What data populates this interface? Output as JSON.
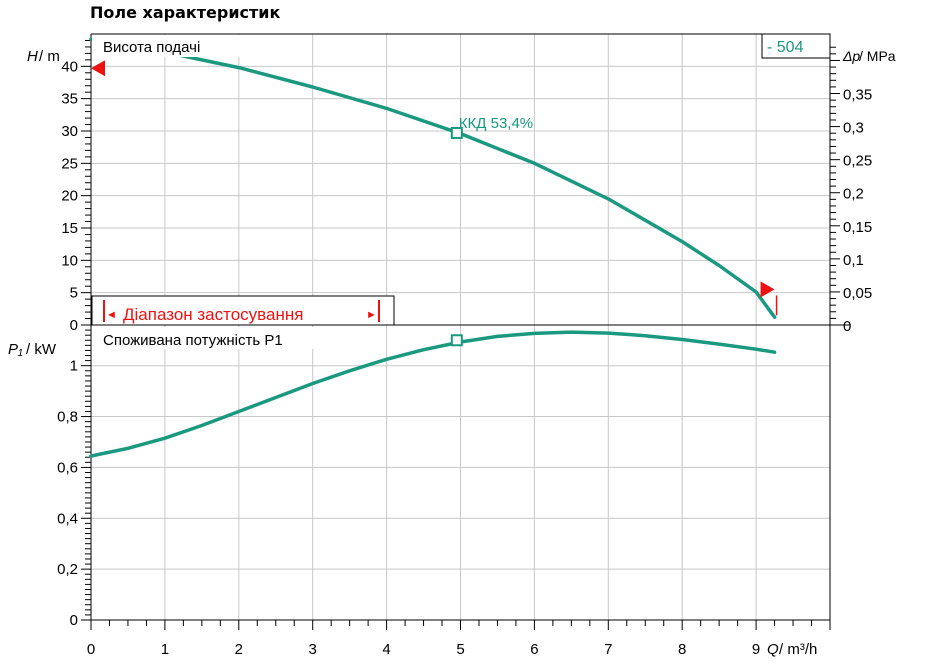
{
  "page_title": "Поле характеристик",
  "colors": {
    "curve": "#1a9980",
    "accent_red": "#ee1111",
    "grid": "#c8c8c8",
    "axis": "#000000"
  },
  "chart_data": [
    {
      "type": "line",
      "panel": "head",
      "title": "Висота подачі",
      "ylabel_symbol": "H",
      "ylabel_unit": " / m",
      "y2label_symbol": "Δp",
      "y2label_unit": " / MPa",
      "xlim": [
        0,
        10
      ],
      "ylim": [
        0,
        45
      ],
      "y2lim": [
        0,
        0.44
      ],
      "yticks": [
        0,
        5,
        10,
        15,
        20,
        25,
        30,
        35,
        40
      ],
      "ytick_labels": [
        "0",
        "5",
        "10",
        "15",
        "20",
        "25",
        "30",
        "35",
        "40"
      ],
      "y2ticks": [
        0,
        0.05,
        0.1,
        0.15,
        0.2,
        0.25,
        0.3,
        0.35
      ],
      "y2tick_labels": [
        "0",
        "0,05",
        "0,1",
        "0,15",
        "0,2",
        "0,25",
        "0,3",
        "0,35"
      ],
      "grid": true,
      "series": [
        {
          "x": [
            0,
            1,
            2,
            3,
            4,
            5,
            6,
            7,
            8,
            8.5,
            9,
            9.25
          ],
          "y": [
            44.2,
            42.2,
            39.8,
            36.8,
            33.5,
            29.6,
            25.0,
            19.5,
            12.9,
            9.2,
            5.1,
            1.2
          ]
        }
      ],
      "markers": [
        {
          "x": 4.95,
          "y": 29.7,
          "label": "ККД  53,4%"
        }
      ],
      "speed_badge": "- 504",
      "max_head_marker": {
        "y": 39.7
      },
      "end_marker": {
        "x": 9.25,
        "y": 5.5
      },
      "range_label": "Діапазон застосування",
      "range_arrow_left": "◄",
      "range_arrow_right": "►"
    },
    {
      "type": "line",
      "panel": "power",
      "title": "Споживана потужність P1",
      "ylabel_symbol": "P₁",
      "ylabel_unit": " / kW",
      "xlabel_symbol": "Q",
      "xlabel_unit": " / m³/h",
      "xlim": [
        0,
        10
      ],
      "ylim": [
        0,
        1.16
      ],
      "xticks": [
        0,
        1,
        2,
        3,
        4,
        5,
        6,
        7,
        8,
        9
      ],
      "xtick_labels": [
        "0",
        "1",
        "2",
        "3",
        "4",
        "5",
        "6",
        "7",
        "8",
        "9"
      ],
      "yticks": [
        0,
        0.2,
        0.4,
        0.6,
        0.8,
        1
      ],
      "ytick_labels": [
        "0",
        "0,2",
        "0,4",
        "0,6",
        "0,8",
        "1"
      ],
      "grid": true,
      "series": [
        {
          "x": [
            0,
            0.5,
            1,
            1.5,
            2,
            2.5,
            3,
            3.5,
            4,
            4.5,
            5,
            5.5,
            6,
            6.5,
            7,
            7.5,
            8,
            8.5,
            9,
            9.25
          ],
          "y": [
            0.645,
            0.675,
            0.715,
            0.765,
            0.82,
            0.875,
            0.93,
            0.98,
            1.025,
            1.063,
            1.093,
            1.115,
            1.127,
            1.132,
            1.128,
            1.118,
            1.103,
            1.085,
            1.065,
            1.053
          ]
        }
      ],
      "markers": [
        {
          "x": 4.95,
          "y": 1.1
        }
      ]
    }
  ]
}
